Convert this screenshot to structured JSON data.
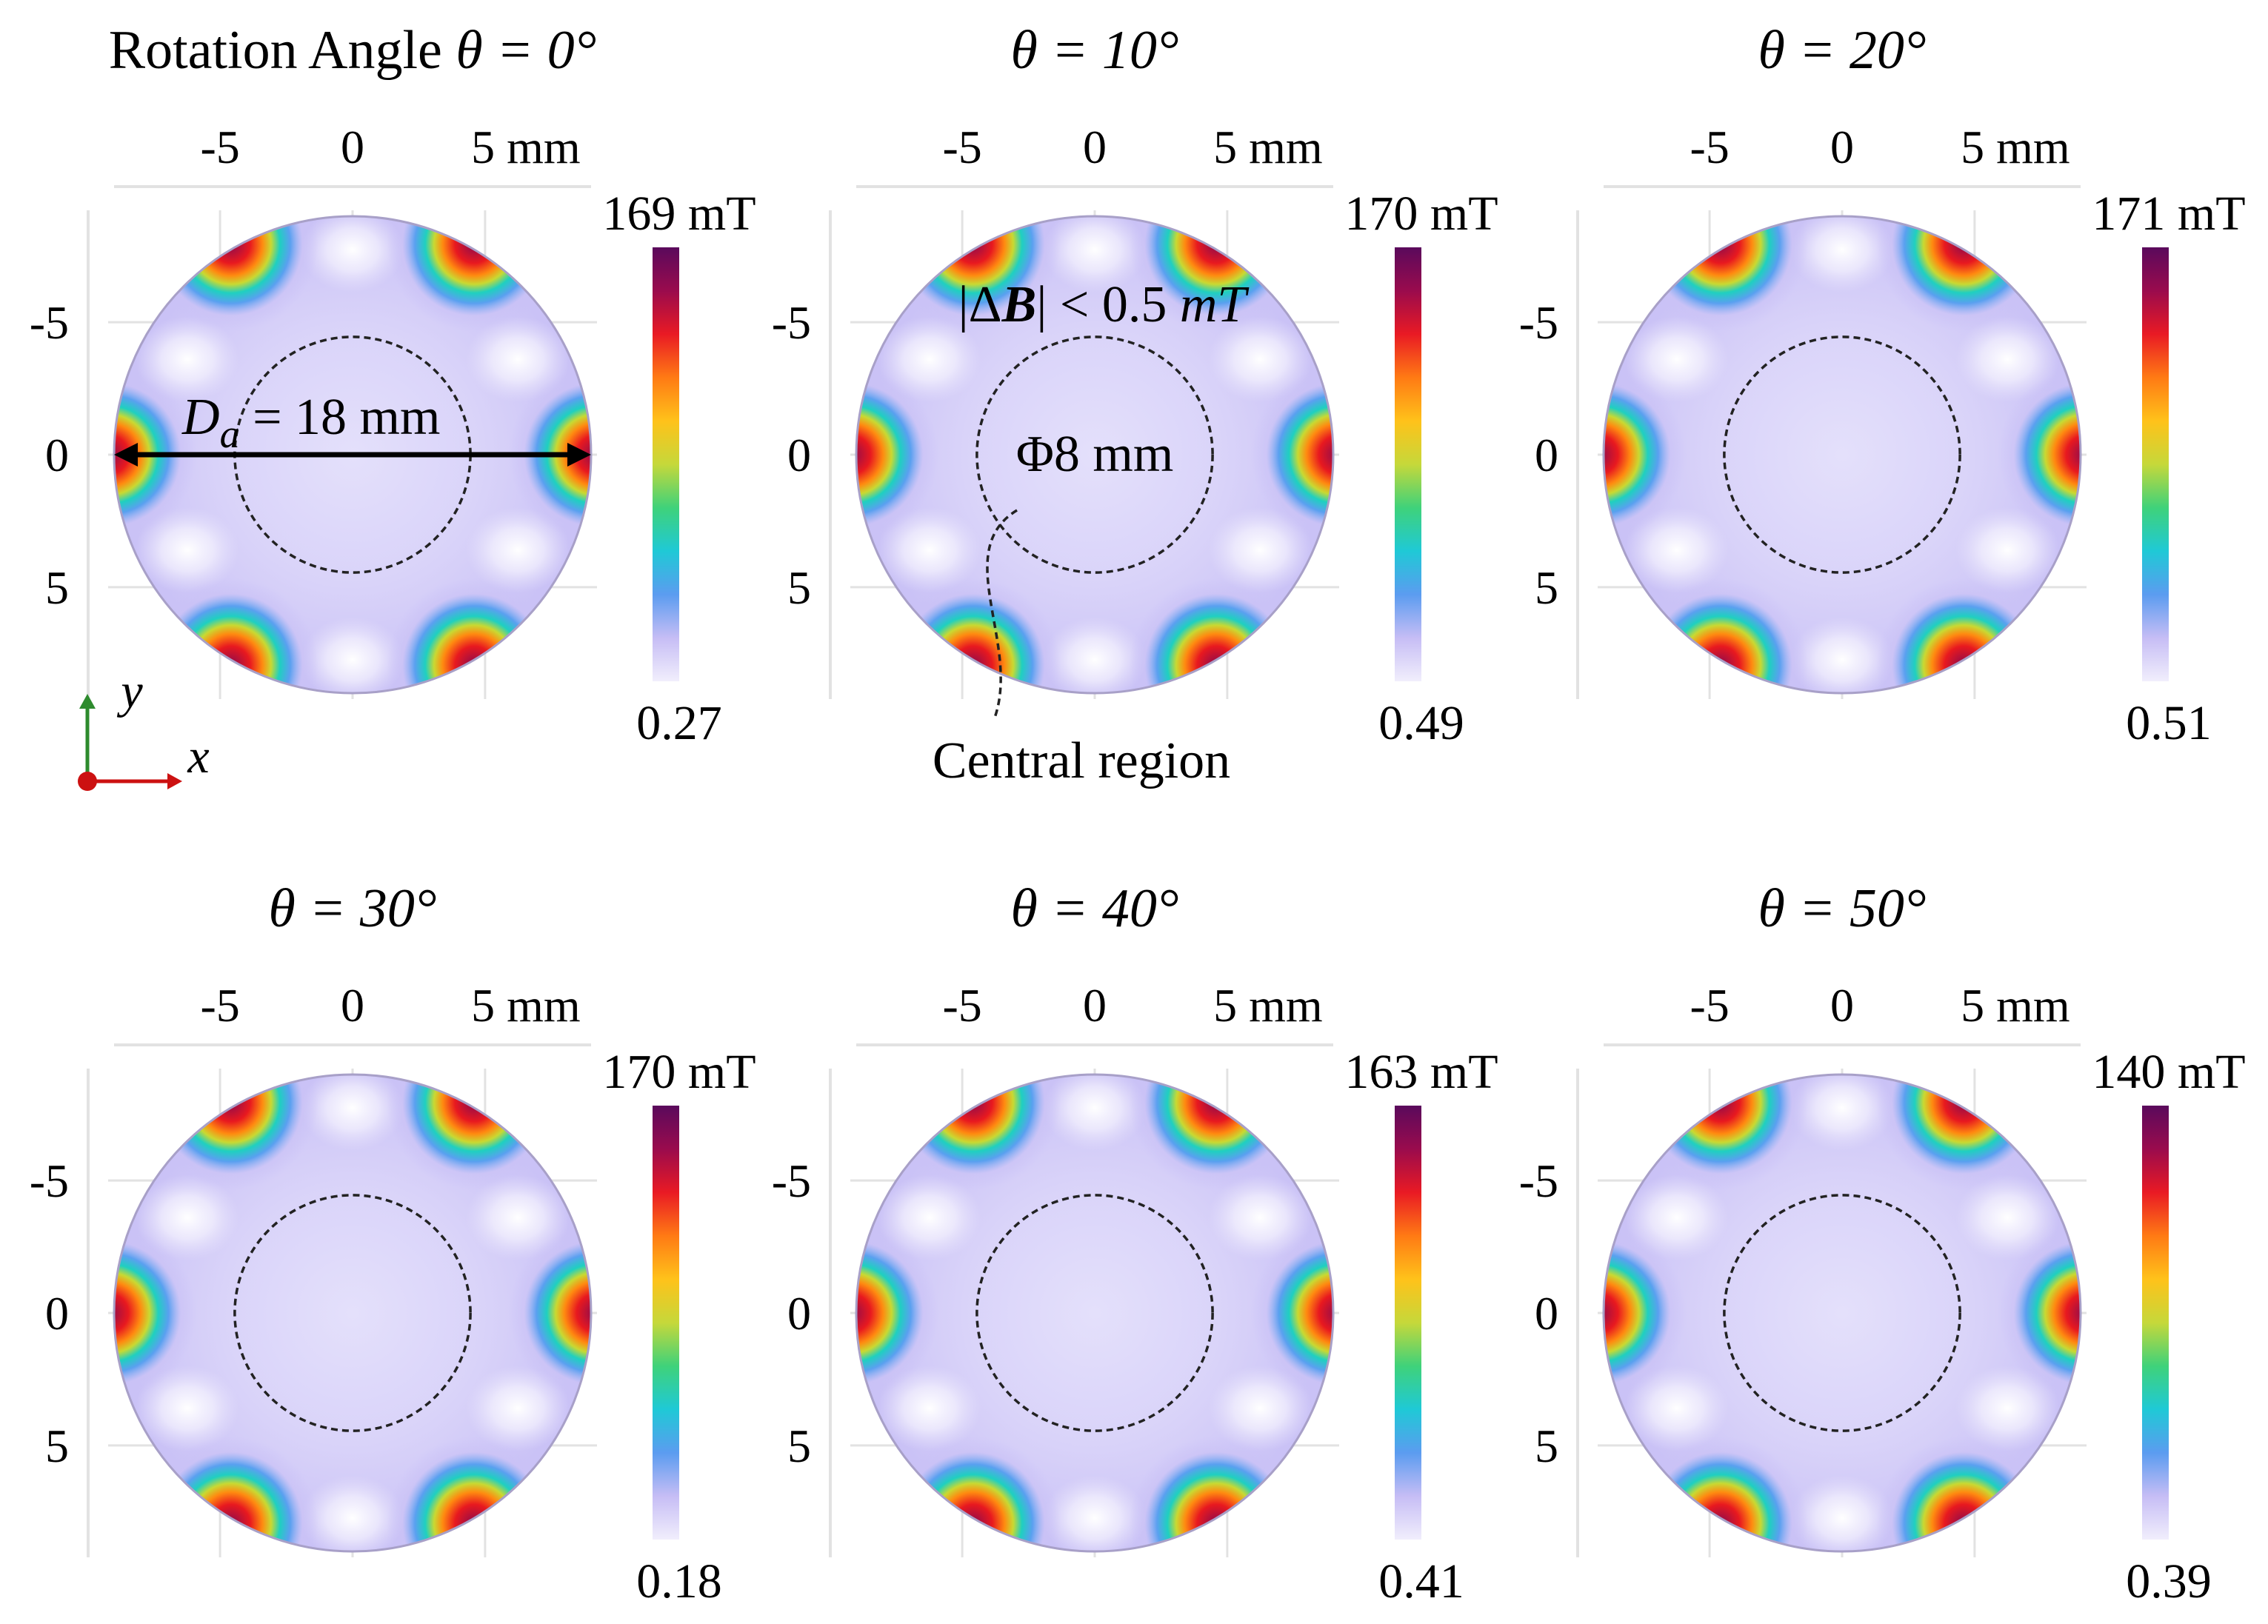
{
  "colors": {
    "background": "#ffffff",
    "disc_base": "#cfc8f7",
    "disc_center": "#e4e0fb",
    "gridline": "#e2e2e2",
    "dashed_circle": "#222222",
    "arrow": "#000000",
    "axis_x": "#cc1111",
    "axis_y": "#2e8b2e",
    "colormap": [
      "#f1eefc",
      "#c6bdf5",
      "#5b9cf0",
      "#1fc9d6",
      "#3fd27a",
      "#c6d83a",
      "#ffc21a",
      "#ff7a14",
      "#e91a24",
      "#9a0b4d",
      "#5a0a5c"
    ]
  },
  "chart_data": [
    {
      "type": "heatmap",
      "title_prefix": "Rotation Angle ",
      "theta_label": "θ = 0°",
      "theta_deg": 0,
      "cbar_max": "169 mT",
      "cbar_min": "0.27",
      "xticks": [
        "-5",
        "0",
        "5 mm"
      ],
      "yticks": [
        "-5",
        "0",
        "5"
      ],
      "xlim": [
        -9,
        9
      ],
      "ylim": [
        -9,
        9
      ],
      "center_region_diameter_mm": 8
    },
    {
      "type": "heatmap",
      "title_prefix": "",
      "theta_label": "θ = 10°",
      "theta_deg": 10,
      "cbar_max": "170 mT",
      "cbar_min": "0.49",
      "xticks": [
        "-5",
        "0",
        "5 mm"
      ],
      "yticks": [
        "-5",
        "0",
        "5"
      ],
      "xlim": [
        -9,
        9
      ],
      "ylim": [
        -9,
        9
      ],
      "center_region_diameter_mm": 8
    },
    {
      "type": "heatmap",
      "title_prefix": "",
      "theta_label": "θ = 20°",
      "theta_deg": 20,
      "cbar_max": "171 mT",
      "cbar_min": "0.51",
      "xticks": [
        "-5",
        "0",
        "5 mm"
      ],
      "yticks": [
        "-5",
        "0",
        "5"
      ],
      "xlim": [
        -9,
        9
      ],
      "ylim": [
        -9,
        9
      ],
      "center_region_diameter_mm": 8
    },
    {
      "type": "heatmap",
      "title_prefix": "",
      "theta_label": "θ = 30°",
      "theta_deg": 30,
      "cbar_max": "170 mT",
      "cbar_min": "0.18",
      "xticks": [
        "-5",
        "0",
        "5 mm"
      ],
      "yticks": [
        "-5",
        "0",
        "5"
      ],
      "xlim": [
        -9,
        9
      ],
      "ylim": [
        -9,
        9
      ],
      "center_region_diameter_mm": 8
    },
    {
      "type": "heatmap",
      "title_prefix": "",
      "theta_label": "θ = 40°",
      "theta_deg": 40,
      "cbar_max": "163 mT",
      "cbar_min": "0.41",
      "xticks": [
        "-5",
        "0",
        "5 mm"
      ],
      "yticks": [
        "-5",
        "0",
        "5"
      ],
      "xlim": [
        -9,
        9
      ],
      "ylim": [
        -9,
        9
      ],
      "center_region_diameter_mm": 8
    },
    {
      "type": "heatmap",
      "title_prefix": "",
      "theta_label": "θ = 50°",
      "theta_deg": 50,
      "cbar_max": "140 mT",
      "cbar_min": "0.39",
      "xticks": [
        "-5",
        "0",
        "5 mm"
      ],
      "yticks": [
        "-5",
        "0",
        "5"
      ],
      "xlim": [
        -9,
        9
      ],
      "ylim": [
        -9,
        9
      ],
      "center_region_diameter_mm": 8
    }
  ],
  "annotations": {
    "diameter_symbol": "D",
    "diameter_subscript": "a",
    "diameter_value": " = 18 mm",
    "delta_b_bars_open": "|Δ",
    "delta_b_symbol": "B",
    "delta_b_bars_close": "| < 0.5 ",
    "delta_b_unit": "mT",
    "phi_label": "Φ8 mm",
    "central_region": "Central region"
  },
  "axes_indicator": {
    "x_label": "x",
    "y_label": "y"
  }
}
